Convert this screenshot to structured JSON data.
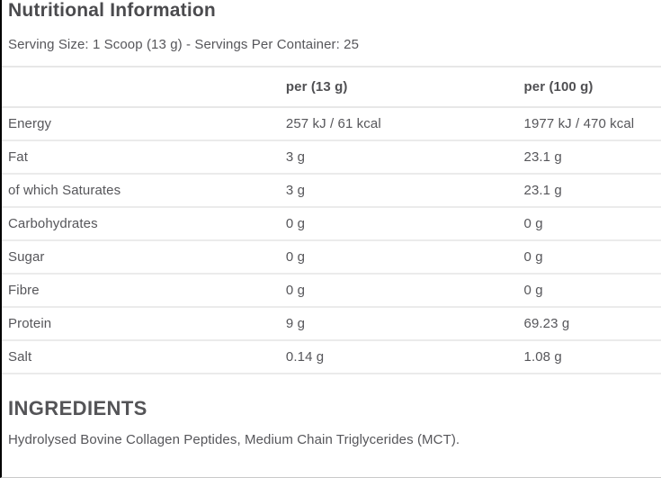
{
  "colors": {
    "text": "#56565a",
    "heading_text": "#4b4b4e",
    "row_border": "#ebebeb",
    "left_edge": "#000000"
  },
  "header": {
    "title": "Nutritional Information",
    "serving_info": "Serving Size: 1 Scoop (13 g) - Servings Per Container: 25"
  },
  "table": {
    "columns": [
      "",
      "per (13 g)",
      "per (100 g)"
    ],
    "rows": [
      {
        "label": "Energy",
        "per_serving": "257 kJ / 61 kcal",
        "per_100g": "1977 kJ / 470 kcal"
      },
      {
        "label": "Fat",
        "per_serving": "3 g",
        "per_100g": "23.1 g"
      },
      {
        "label": "of which Saturates",
        "per_serving": "3 g",
        "per_100g": "23.1 g"
      },
      {
        "label": "Carbohydrates",
        "per_serving": "0 g",
        "per_100g": "0 g"
      },
      {
        "label": "Sugar",
        "per_serving": "0 g",
        "per_100g": "0 g"
      },
      {
        "label": "Fibre",
        "per_serving": "0 g",
        "per_100g": "0 g"
      },
      {
        "label": "Protein",
        "per_serving": "9 g",
        "per_100g": "69.23 g"
      },
      {
        "label": "Salt",
        "per_serving": "0.14 g",
        "per_100g": "1.08 g"
      }
    ]
  },
  "ingredients": {
    "heading": "INGREDIENTS",
    "text": "Hydrolysed Bovine Collagen Peptides, Medium Chain Triglycerides (MCT)."
  }
}
